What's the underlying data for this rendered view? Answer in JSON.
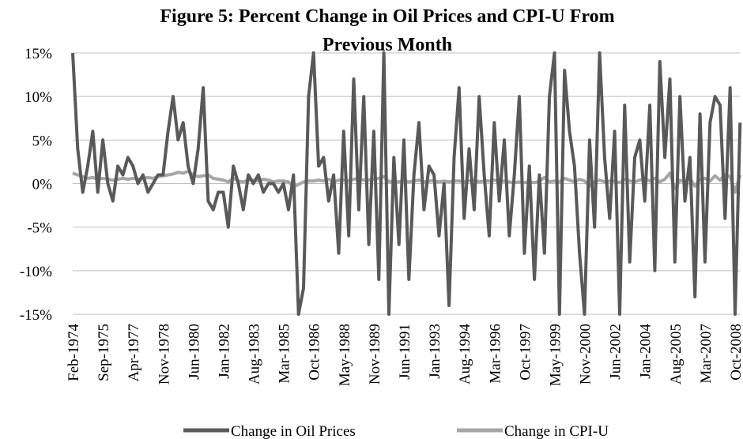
{
  "chart_data": {
    "type": "line",
    "title": [
      "Figure 5: Percent Change in Oil Prices and CPI-U From",
      "Previous Month"
    ],
    "categories": [
      "Feb-1974",
      null,
      null,
      null,
      null,
      null,
      "Sep-1975",
      null,
      null,
      null,
      null,
      null,
      "Apr-1977",
      null,
      null,
      null,
      null,
      null,
      "Nov-1978",
      null,
      null,
      null,
      null,
      null,
      "Jun-1980",
      null,
      null,
      null,
      null,
      null,
      "Jan-1982",
      null,
      null,
      null,
      null,
      null,
      "Aug-1983",
      null,
      null,
      null,
      null,
      null,
      "Mar-1985",
      null,
      null,
      null,
      null,
      null,
      "Oct-1986",
      null,
      null,
      null,
      null,
      null,
      "May-1988",
      null,
      null,
      null,
      null,
      null,
      "Nov-1989",
      null,
      null,
      null,
      null,
      null,
      "Jun-1991",
      null,
      null,
      null,
      null,
      null,
      "Jan-1993",
      null,
      null,
      null,
      null,
      null,
      "Aug-1994",
      null,
      null,
      null,
      null,
      null,
      "Mar-1996",
      null,
      null,
      null,
      null,
      null,
      "Oct-1997",
      null,
      null,
      null,
      null,
      null,
      "May-1999",
      null,
      null,
      null,
      null,
      null,
      "Nov-2000",
      null,
      null,
      null,
      null,
      null,
      "Jun-2002",
      null,
      null,
      null,
      null,
      null,
      "Jan-2004",
      null,
      null,
      null,
      null,
      null,
      "Aug-2005",
      null,
      null,
      null,
      null,
      null,
      "Mar-2007",
      null,
      null,
      null,
      null,
      null,
      "Oct-2008",
      null
    ],
    "series": [
      {
        "name": "Change in Oil Prices",
        "color": "#595959",
        "values": [
          15,
          4,
          -1,
          2,
          6,
          -1,
          5,
          0,
          -2,
          2,
          1,
          3,
          2,
          0,
          1,
          -1,
          0,
          1,
          1,
          6,
          10,
          5,
          7,
          2,
          0,
          4,
          11,
          -2,
          -3,
          -1,
          -1,
          -5,
          2,
          0,
          -3,
          1,
          0,
          1,
          -1,
          0,
          0,
          -1,
          0,
          -3,
          1,
          -15,
          -12,
          10,
          15,
          2,
          3,
          -2,
          1,
          -8,
          6,
          -6,
          12,
          -3,
          10,
          -7,
          6,
          -11,
          15,
          -15,
          3,
          -7,
          5,
          -11,
          1,
          7,
          -3,
          2,
          1,
          -6,
          0,
          -14,
          3,
          11,
          -4,
          4,
          -3,
          10,
          1,
          -6,
          7,
          -2,
          5,
          -6,
          1,
          10,
          -8,
          2,
          -11,
          1,
          -8,
          10,
          15,
          -15,
          13,
          6,
          2,
          -8,
          -15,
          5,
          -5,
          15,
          3,
          -4,
          6,
          -15,
          9,
          -9,
          3,
          5,
          -2,
          9,
          -10,
          14,
          3,
          12,
          -9,
          10,
          -2,
          3,
          -13,
          8,
          -9,
          7,
          10,
          9,
          -4,
          11,
          -15,
          7
        ]
      },
      {
        "name": "Change in CPI-U",
        "color": "#a6a6a6",
        "values": [
          1.2,
          1.0,
          0.8,
          0.6,
          0.7,
          0.5,
          0.6,
          0.5,
          0.4,
          0.5,
          0.6,
          0.5,
          0.6,
          0.5,
          0.6,
          0.7,
          0.6,
          0.8,
          0.9,
          1.0,
          1.1,
          1.3,
          1.2,
          1.4,
          1.0,
          0.8,
          0.9,
          1.0,
          0.6,
          0.5,
          0.4,
          0.2,
          0.6,
          0.3,
          0.2,
          0.4,
          0.4,
          0.3,
          0.5,
          0.4,
          0.2,
          0.3,
          0.3,
          0.2,
          -0.4,
          -0.1,
          0.2,
          0.3,
          0.3,
          0.4,
          0.3,
          0.5,
          0.2,
          0.4,
          0.4,
          0.3,
          0.5,
          0.6,
          0.4,
          0.4,
          0.5,
          0.6,
          0.8,
          0.2,
          0.3,
          0.2,
          0.3,
          0.2,
          0.3,
          0.4,
          0.2,
          0.3,
          0.3,
          0.2,
          0.3,
          0.2,
          0.3,
          0.3,
          0.2,
          0.3,
          0.4,
          0.2,
          0.3,
          0.3,
          0.4,
          0.2,
          0.3,
          0.2,
          0.1,
          0.2,
          0.1,
          0.2,
          0.1,
          0.3,
          0.7,
          0.2,
          0.3,
          0.2,
          0.6,
          0.4,
          0.2,
          0.5,
          0.3,
          -0.3,
          0.2,
          0.4,
          0.2,
          0.3,
          0.3,
          0.1,
          0.5,
          0.3,
          0.2,
          0.4,
          0.5,
          0.3,
          0.6,
          0.2,
          0.5,
          1.2,
          -0.6,
          0.4,
          0.2,
          0.6,
          -0.3,
          0.5,
          0.6,
          0.3,
          0.9,
          0.4,
          1.0,
          0.8,
          -1.0,
          1.0
        ]
      }
    ],
    "ylim": [
      -15,
      15
    ],
    "yticks": [
      {
        "value": -15,
        "label": "-15%"
      },
      {
        "value": -10,
        "label": "-10%"
      },
      {
        "value": -5,
        "label": "-5%"
      },
      {
        "value": 0,
        "label": "0%"
      },
      {
        "value": 5,
        "label": "5%"
      },
      {
        "value": 10,
        "label": "10%"
      },
      {
        "value": 15,
        "label": "15%"
      }
    ],
    "grid": true,
    "legend": "bottom"
  }
}
